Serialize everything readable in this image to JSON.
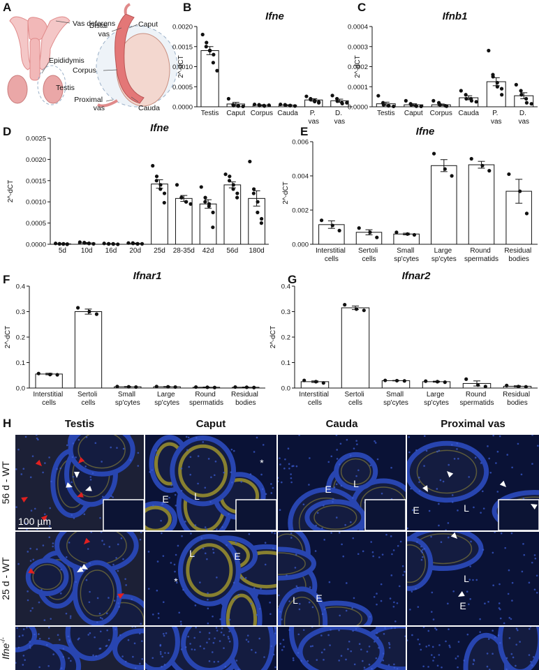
{
  "panels": [
    "A",
    "B",
    "C",
    "D",
    "E",
    "F",
    "G",
    "H"
  ],
  "diagram": {
    "labels": [
      "Vas deferens",
      "Epididymis",
      "Testis",
      "Distal vas",
      "Caput",
      "Corpus",
      "Proximal vas",
      "Cauda"
    ]
  },
  "chart_data": [
    {
      "type": "bar",
      "title": "Ifne",
      "ylabel": "2^-dCT",
      "categories": [
        "Testis",
        "Caput",
        "Corpus",
        "Cauda",
        "P. vas",
        "D. vas"
      ],
      "values": [
        0.0014,
        7e-05,
        4e-05,
        4e-05,
        0.00017,
        0.00015
      ],
      "errors": [
        0.0001,
        4e-05,
        1e-05,
        1e-05,
        3e-05,
        4e-05
      ],
      "points": [
        [
          0.0018,
          0.0016,
          0.0015,
          0.0014,
          0.0014,
          0.0013,
          0.0011,
          0.0009
        ],
        [
          0.0002,
          5e-05,
          3e-05,
          2e-05,
          2e-05,
          1e-05
        ],
        [
          6e-05,
          5e-05,
          3e-05,
          3e-05,
          2e-05,
          4e-05
        ],
        [
          6e-05,
          5e-05,
          4e-05,
          3e-05,
          3e-05,
          2e-05
        ],
        [
          0.00026,
          0.0002,
          0.00018,
          0.00015,
          0.00013,
          0.00012,
          0.0001
        ],
        [
          0.00028,
          0.0002,
          0.00014,
          0.0001,
          8e-05,
          0.0001
        ]
      ],
      "ylim": [
        0,
        0.002
      ],
      "yticks": [
        {
          "value": 0,
          "label": "0.0000"
        },
        {
          "value": 0.0005,
          "label": "0.0005"
        },
        {
          "value": 0.001,
          "label": "0.0010"
        },
        {
          "value": 0.0015,
          "label": "0.0015"
        },
        {
          "value": 0.002,
          "label": "0.0020"
        }
      ]
    },
    {
      "type": "bar",
      "title": "Ifnb1",
      "ylabel": "2^-dCT",
      "categories": [
        "Testis",
        "Caput",
        "Corpus",
        "Cauda",
        "P. vas",
        "D. vas"
      ],
      "values": [
        1.5e-05,
        1e-05,
        1e-05,
        4.5e-05,
        0.000125,
        5.5e-05
      ],
      "errors": [
        8e-06,
        5e-06,
        4e-06,
        1e-05,
        2e-05,
        1.5e-05
      ],
      "points": [
        [
          5.5e-05,
          2e-05,
          1e-05,
          5e-06,
          5e-06,
          2e-06
        ],
        [
          3e-05,
          1.5e-05,
          1e-05,
          5e-06,
          3e-06,
          2e-06
        ],
        [
          3e-05,
          2e-05,
          1e-05,
          5e-06,
          3e-06
        ],
        [
          8e-05,
          6e-05,
          4e-05,
          4e-05,
          3e-05,
          2.5e-05
        ],
        [
          0.00028,
          0.00016,
          0.00015,
          0.00012,
          0.0001,
          9e-05,
          6e-05
        ],
        [
          0.00011,
          8e-05,
          6e-05,
          4e-05,
          2e-05,
          1.5e-05
        ]
      ],
      "ylim": [
        0,
        0.0004
      ],
      "yticks": [
        {
          "value": 0,
          "label": "0.0000"
        },
        {
          "value": 0.0001,
          "label": "0.0001"
        },
        {
          "value": 0.0002,
          "label": "0.0002"
        },
        {
          "value": 0.0003,
          "label": "0.0003"
        },
        {
          "value": 0.0004,
          "label": "0.0004"
        }
      ]
    },
    {
      "type": "bar",
      "title": "Ifne",
      "ylabel": "2^-dCT",
      "categories": [
        "5d",
        "10d",
        "16d",
        "20d",
        "25d",
        "28-35d",
        "42d",
        "56d",
        "180d"
      ],
      "values": [
        1e-05,
        3e-05,
        1e-05,
        2e-05,
        0.00142,
        0.00108,
        0.00095,
        0.0014,
        0.00108
      ],
      "errors": [
        5e-06,
        1e-05,
        5e-06,
        8e-06,
        0.0001,
        7e-05,
        0.0001,
        7e-05,
        0.00018
      ],
      "points": [
        [
          2e-05,
          1e-05,
          1e-05,
          1e-05,
          5e-06,
          5e-06,
          0
        ],
        [
          5e-05,
          4e-05,
          3e-05,
          2e-05,
          2e-05,
          1e-05
        ],
        [
          2e-05,
          1e-05,
          1e-05,
          1e-05,
          5e-06,
          0
        ],
        [
          3e-05,
          3e-05,
          2e-05,
          1e-05,
          1e-05,
          1e-05
        ],
        [
          0.00185,
          0.0016,
          0.0015,
          0.0014,
          0.0013,
          0.0012,
          0.00098
        ],
        [
          0.0014,
          0.0011,
          0.0011,
          0.001,
          0.001,
          0.00095
        ],
        [
          0.00135,
          0.0011,
          0.001,
          0.00095,
          0.0009,
          0.00075,
          0.0004
        ],
        [
          0.00165,
          0.0016,
          0.0015,
          0.0014,
          0.0013,
          0.0012,
          0.0011
        ],
        [
          0.00195,
          0.0013,
          0.0012,
          0.001,
          0.00075,
          0.0006,
          0.0005
        ]
      ],
      "ylim": [
        0,
        0.0025
      ],
      "yticks": [
        {
          "value": 0,
          "label": "0.0000"
        },
        {
          "value": 0.0005,
          "label": "0.0005"
        },
        {
          "value": 0.001,
          "label": "0.0010"
        },
        {
          "value": 0.0015,
          "label": "0.0015"
        },
        {
          "value": 0.002,
          "label": "0.0020"
        },
        {
          "value": 0.0025,
          "label": "0.0025"
        }
      ]
    },
    {
      "type": "bar",
      "title": "Ifne",
      "ylabel": "2^-dCT",
      "categories": [
        "Interstitial cells",
        "Sertoli cells",
        "Small sp'cytes",
        "Large sp'cytes",
        "Round spermatids",
        "Residual bodies"
      ],
      "values": [
        0.00115,
        0.0007,
        0.0006,
        0.0046,
        0.00465,
        0.0031
      ],
      "errors": [
        0.00022,
        0.00015,
        5e-05,
        0.00035,
        0.0002,
        0.0007
      ],
      "points": [
        [
          0.0014,
          0.0011,
          0.0008
        ],
        [
          0.00095,
          0.0007,
          0.0004
        ],
        [
          0.0007,
          0.0006,
          0.00055
        ],
        [
          0.0053,
          0.0044,
          0.004
        ],
        [
          0.005,
          0.0046,
          0.0043
        ],
        [
          0.0041,
          0.0031,
          0.0018
        ]
      ],
      "ylim": [
        0,
        0.006
      ],
      "yticks": [
        {
          "value": 0,
          "label": "0.000"
        },
        {
          "value": 0.002,
          "label": "0.002"
        },
        {
          "value": 0.004,
          "label": "0.004"
        },
        {
          "value": 0.006,
          "label": "0.006"
        }
      ]
    },
    {
      "type": "bar",
      "title": "Ifnar1",
      "ylabel": "2^-dCT",
      "categories": [
        "Interstitial cells",
        "Sertoli cells",
        "Small sp'cytes",
        "Large sp'cytes",
        "Round spermatids",
        "Residual bodies"
      ],
      "values": [
        0.055,
        0.3,
        0.005,
        0.005,
        0.003,
        0.003
      ],
      "errors": [
        0.003,
        0.01,
        0.001,
        0.001,
        0.001,
        0.001
      ],
      "points": [
        [
          0.057,
          0.053,
          0.052
        ],
        [
          0.315,
          0.3,
          0.29
        ],
        [
          0.006,
          0.005,
          0.004
        ],
        [
          0.006,
          0.005,
          0.004
        ],
        [
          0.004,
          0.003,
          0.002
        ],
        [
          0.004,
          0.003,
          0.002
        ]
      ],
      "ylim": [
        0,
        0.4
      ],
      "yticks": [
        {
          "value": 0,
          "label": "0.0"
        },
        0.1,
        0.2,
        0.3,
        0.4
      ]
    },
    {
      "type": "bar",
      "title": "Ifnar2",
      "ylabel": "2^-dCT",
      "categories": [
        "Interstitial cells",
        "Sertoli cells",
        "Small sp'cytes",
        "Large sp'cytes",
        "Round spermatids",
        "Residual bodies"
      ],
      "values": [
        0.025,
        0.315,
        0.029,
        0.025,
        0.018,
        0.007
      ],
      "errors": [
        0.003,
        0.007,
        0.001,
        0.002,
        0.01,
        0.002
      ],
      "points": [
        [
          0.03,
          0.025,
          0.02
        ],
        [
          0.327,
          0.31,
          0.305
        ],
        [
          0.03,
          0.029,
          0.028
        ],
        [
          0.027,
          0.025,
          0.023
        ],
        [
          0.035,
          0.012,
          0.006
        ],
        [
          0.01,
          0.006,
          0.005
        ]
      ],
      "ylim": [
        0,
        0.4
      ],
      "yticks": [
        {
          "value": 0,
          "label": "0.0"
        },
        0.1,
        0.2,
        0.3,
        0.4
      ]
    }
  ],
  "micrographs": {
    "columns": [
      "Testis",
      "Caput",
      "Cauda",
      "Proximal vas"
    ],
    "rows": [
      {
        "text": "56 d - WT"
      },
      {
        "text": "25 d - WT"
      },
      {
        "text": "Ifne",
        "sup": "-/-"
      }
    ],
    "annotations": [
      "100 µm",
      "E",
      "L",
      "*",
      "E",
      "L",
      "L",
      "E",
      "L",
      "E",
      "*",
      "L",
      "E",
      "L",
      "E"
    ]
  }
}
